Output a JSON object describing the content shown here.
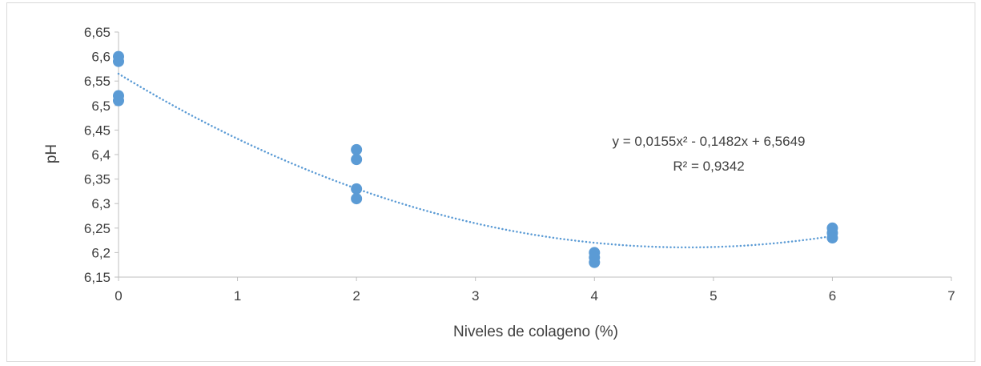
{
  "chart_data": {
    "type": "scatter",
    "xlabel": "Niveles de colageno (%)",
    "ylabel": "pH",
    "xlim": [
      0,
      7
    ],
    "ylim": [
      6.15,
      6.65
    ],
    "x_ticks": [
      "0",
      "1",
      "2",
      "3",
      "4",
      "5",
      "6",
      "7"
    ],
    "y_ticks": [
      "6,15",
      "6,2",
      "6,25",
      "6,3",
      "6,35",
      "6,4",
      "6,45",
      "6,5",
      "6,55",
      "6,6",
      "6,65"
    ],
    "grid": false,
    "series": [
      {
        "points": [
          {
            "x": 0,
            "y": 6.6
          },
          {
            "x": 0,
            "y": 6.59
          },
          {
            "x": 0,
            "y": 6.52
          },
          {
            "x": 0,
            "y": 6.51
          },
          {
            "x": 2,
            "y": 6.41
          },
          {
            "x": 2,
            "y": 6.39
          },
          {
            "x": 2,
            "y": 6.33
          },
          {
            "x": 2,
            "y": 6.31
          },
          {
            "x": 4,
            "y": 6.2
          },
          {
            "x": 4,
            "y": 6.19
          },
          {
            "x": 4,
            "y": 6.18
          },
          {
            "x": 6,
            "y": 6.25
          },
          {
            "x": 6,
            "y": 6.24
          },
          {
            "x": 6,
            "y": 6.23
          }
        ],
        "color": "#5b9bd5"
      }
    ],
    "trendline": {
      "type": "polynomial",
      "coefficients": {
        "a": 0.0155,
        "b": -0.1482,
        "c": 6.5649
      },
      "x_range": [
        0,
        6
      ],
      "color": "#5b9bd5",
      "equation_label": "y = 0,0155x² - 0,1482x + 6,5649",
      "r2_label": "R² = 0,9342"
    }
  }
}
